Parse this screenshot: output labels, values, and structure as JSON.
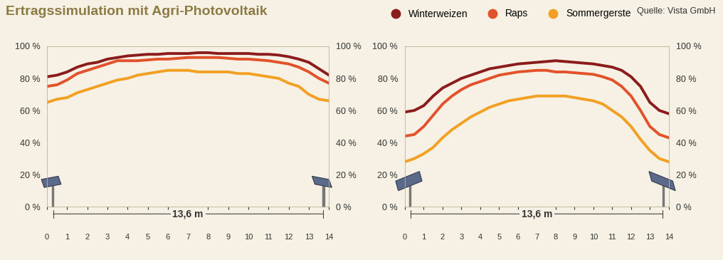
{
  "title": "Ertragssimulation mit Agri-Photovoltaik",
  "source": "Quelle: Vista GmbH",
  "chart_data": [
    {
      "type": "line",
      "legend": "upper right",
      "annotation": "13,6 m",
      "x": [
        0,
        0.5,
        1,
        1.5,
        2,
        2.5,
        3,
        3.5,
        4,
        4.5,
        5,
        5.5,
        6,
        6.5,
        7,
        7.5,
        8,
        8.5,
        9,
        9.5,
        10,
        10.5,
        11,
        11.5,
        12,
        12.5,
        13,
        13.5,
        14
      ],
      "series": [
        {
          "name": "Winterweizen",
          "color": "#8b1c1c",
          "values": [
            81,
            82,
            84,
            87,
            89,
            90,
            92,
            93,
            94,
            94.5,
            95,
            95,
            95.5,
            95.5,
            95.5,
            96,
            96,
            95.5,
            95.5,
            95.5,
            95.5,
            95,
            95,
            94.5,
            93.5,
            92,
            90,
            86,
            82
          ]
        },
        {
          "name": "Raps",
          "color": "#e2522b",
          "values": [
            75,
            76,
            79,
            83,
            85,
            87,
            89,
            91,
            91,
            91,
            91.5,
            92,
            92,
            92.5,
            93,
            93,
            93,
            93,
            92.5,
            92,
            92,
            91.5,
            91,
            90,
            89,
            87,
            84,
            80,
            77
          ]
        },
        {
          "name": "Sommergerste",
          "color": "#f2a024",
          "values": [
            65,
            67,
            68,
            71,
            73,
            75,
            77,
            79,
            80,
            82,
            83,
            84,
            85,
            85,
            85,
            84,
            84,
            84,
            84,
            83,
            83,
            82,
            81,
            80,
            77,
            75,
            70,
            67,
            66
          ]
        }
      ],
      "xlim": [
        0,
        14
      ],
      "xticks": [
        0,
        1,
        2,
        3,
        4,
        5,
        6,
        7,
        8,
        9,
        10,
        11,
        12,
        13,
        14
      ],
      "ylim": [
        0,
        100
      ],
      "yticks": [
        {
          "value": 0,
          "label": "0 %"
        },
        {
          "value": 20,
          "label": "20 %"
        },
        {
          "value": 40,
          "label": "40 %"
        },
        {
          "value": 60,
          "label": "60 %"
        },
        {
          "value": 80,
          "label": "80 %"
        },
        {
          "value": 100,
          "label": "100 %"
        }
      ]
    },
    {
      "type": "line",
      "annotation": "13,6 m",
      "x": [
        0,
        0.5,
        1,
        1.5,
        2,
        2.5,
        3,
        3.5,
        4,
        4.5,
        5,
        5.5,
        6,
        6.5,
        7,
        7.5,
        8,
        8.5,
        9,
        9.5,
        10,
        10.5,
        11,
        11.5,
        12,
        12.5,
        13,
        13.5,
        14
      ],
      "series": [
        {
          "name": "Winterweizen",
          "color": "#8b1c1c",
          "values": [
            59,
            60,
            63,
            69,
            74,
            77,
            80,
            82,
            84,
            86,
            87,
            88,
            89,
            89.5,
            90,
            90.5,
            91,
            90.5,
            90,
            89.5,
            89,
            88,
            87,
            85,
            81,
            75,
            65,
            60,
            58
          ]
        },
        {
          "name": "Raps",
          "color": "#e2522b",
          "values": [
            44,
            45,
            50,
            57,
            64,
            69,
            73,
            76,
            78,
            80,
            82,
            83,
            84,
            84.5,
            85,
            85,
            84,
            84,
            83.5,
            83,
            82.5,
            81,
            79,
            75,
            69,
            60,
            50,
            45,
            43
          ]
        },
        {
          "name": "Sommergerste",
          "color": "#f2a024",
          "values": [
            28,
            30,
            33,
            37,
            43,
            48,
            52,
            56,
            59,
            62,
            64,
            66,
            67,
            68,
            69,
            69,
            69,
            69,
            68,
            67,
            66,
            64,
            60,
            56,
            50,
            42,
            35,
            30,
            28
          ]
        }
      ],
      "xlim": [
        0,
        14
      ],
      "xticks": [
        0,
        1,
        2,
        3,
        4,
        5,
        6,
        7,
        8,
        9,
        10,
        11,
        12,
        13,
        14
      ],
      "ylim": [
        0,
        100
      ],
      "yticks": [
        {
          "value": 0,
          "label": "0 %"
        },
        {
          "value": 20,
          "label": "20 %"
        },
        {
          "value": 40,
          "label": "40 %"
        },
        {
          "value": 60,
          "label": "60 %"
        },
        {
          "value": 80,
          "label": "80 %"
        },
        {
          "value": 100,
          "label": "100 %"
        }
      ]
    }
  ]
}
